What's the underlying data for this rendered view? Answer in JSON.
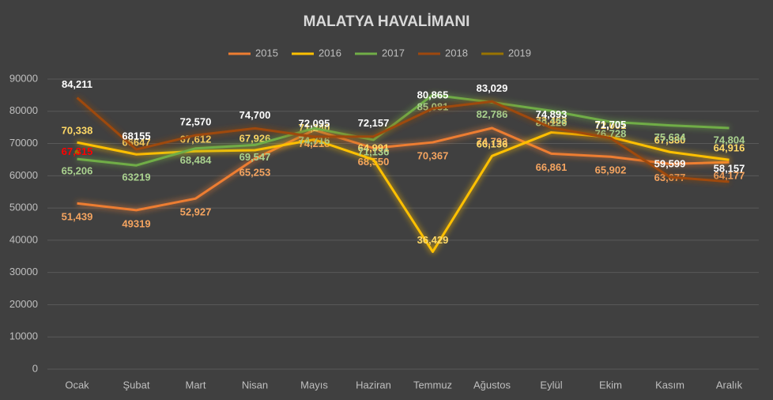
{
  "chart_data": {
    "type": "line",
    "title": "MALATYA HAVALİMANI",
    "categories": [
      "Ocak",
      "Şubat",
      "Mart",
      "Nisan",
      "Mayıs",
      "Haziran",
      "Temmuz",
      "Ağustos",
      "Eylül",
      "Ekim",
      "Kasım",
      "Aralık"
    ],
    "ylim": [
      0,
      90000
    ],
    "yticks": [
      0,
      10000,
      20000,
      30000,
      40000,
      50000,
      60000,
      70000,
      80000,
      90000
    ],
    "grid": true,
    "legend": "top",
    "series": [
      {
        "name": "2015",
        "color": "#ed7d31",
        "label_color": "#f4a460",
        "values": [
          51439,
          49319,
          52927,
          65253,
          74218,
          68550,
          70367,
          74793,
          66861,
          65902,
          63677,
          64177
        ],
        "value_labels": [
          "51,439",
          "49319",
          "52,927",
          "65,253",
          "74,218",
          "68,550",
          "70,367",
          "74,793",
          "66,861",
          "65,902",
          "63,677",
          "64,177"
        ]
      },
      {
        "name": "2016",
        "color": "#ffc000",
        "label_color": "#ffd966",
        "values": [
          70338,
          66647,
          67612,
          67926,
          71240,
          64991,
          36429,
          66136,
          73463,
          72001,
          67380,
          64916
        ],
        "value_labels": [
          "70,338",
          "66647",
          "67,612",
          "67,926",
          "71,240",
          "64,991",
          "36,429",
          "66,136",
          "73,463",
          "72,001",
          "67,380",
          "64,916"
        ]
      },
      {
        "name": "2017",
        "color": "#70ad47",
        "label_color": "#a9d18e",
        "values": [
          65206,
          63219,
          68484,
          69547,
          74716,
          71136,
          85081,
          82786,
          80126,
          76728,
          75634,
          74804
        ],
        "value_labels": [
          "65,206",
          "63219",
          "68,484",
          "69,547",
          "74,716",
          "71,136",
          "85,081",
          "82,786",
          "80,126",
          "76,728",
          "75,634",
          "74,804"
        ]
      },
      {
        "name": "2018",
        "color": "#9e480e",
        "label_color": "#ffffff",
        "values": [
          84211,
          68155,
          72570,
          74700,
          72095,
          72157,
          80865,
          83029,
          74893,
          71705,
          59599,
          58157
        ],
        "value_labels": [
          "84,211",
          "68155",
          "72,570",
          "74,700",
          "72,095",
          "72,157",
          "80,865",
          "83,029",
          "74,893",
          "71,705",
          "59,599",
          "58,157"
        ]
      },
      {
        "name": "2019",
        "color": "#997300",
        "label_color": "#ff0000",
        "values": [
          67315,
          null,
          null,
          null,
          null,
          null,
          null,
          null,
          null,
          null,
          null,
          null
        ],
        "value_labels": [
          "67,315",
          null,
          null,
          null,
          null,
          null,
          null,
          null,
          null,
          null,
          null,
          null
        ]
      }
    ]
  }
}
